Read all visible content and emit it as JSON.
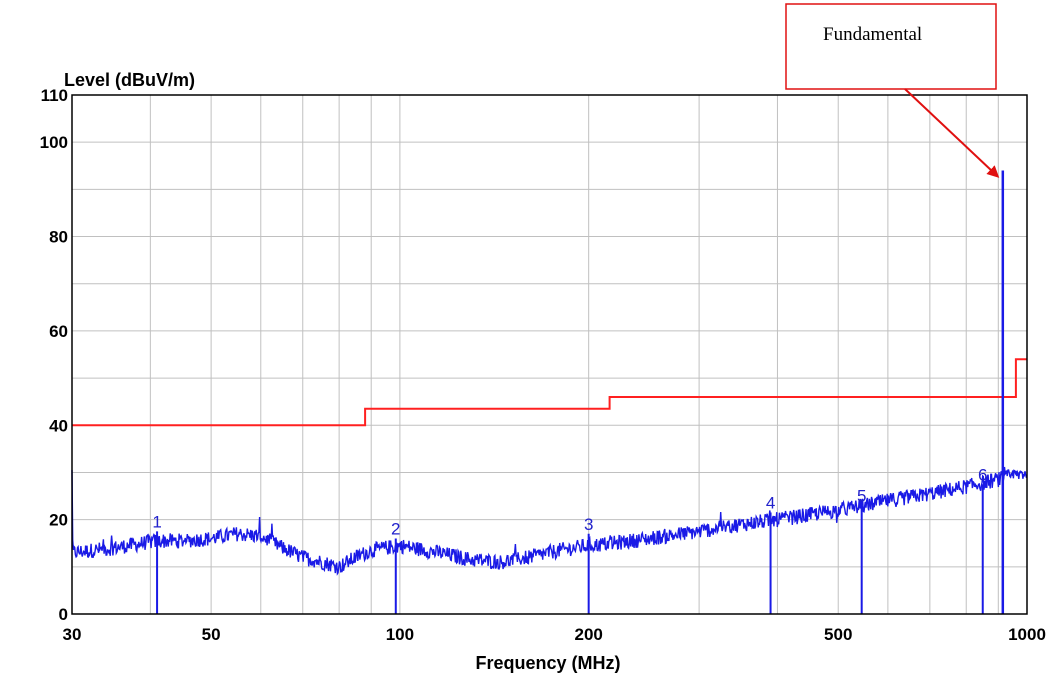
{
  "chart_data": {
    "type": "line",
    "title": "",
    "xlabel": "Frequency (MHz)",
    "ylabel": "Level (dBuV/m)",
    "x_scale": "log",
    "xlim": [
      30,
      1000
    ],
    "ylim": [
      0,
      110
    ],
    "x_ticks": [
      30,
      50,
      100,
      200,
      500,
      1000
    ],
    "y_ticks": [
      0,
      20,
      40,
      60,
      80,
      100,
      110
    ],
    "grid": true,
    "colors": {
      "limit": "#ff2020",
      "emission": "#1a1ae6",
      "grid": "#c0c0c0",
      "annotation": "#e01010"
    },
    "series": [
      {
        "name": "",
        "style": "step",
        "color": "#ff2020",
        "x": [
          30,
          88,
          88,
          216,
          216,
          960,
          960,
          1000
        ],
        "y": [
          40,
          40,
          43.5,
          43.5,
          46,
          46,
          54,
          54
        ]
      },
      {
        "name": "",
        "style": "noisy",
        "color": "#1a1ae6",
        "x": [
          30,
          35,
          41,
          45,
          50,
          55,
          60,
          65,
          70,
          75,
          80,
          85,
          90,
          100,
          110,
          120,
          130,
          145,
          160,
          180,
          200,
          220,
          250,
          300,
          350,
          400,
          450,
          500,
          550,
          600,
          700,
          800,
          900,
          1000
        ],
        "y": [
          13,
          14,
          15.5,
          15.5,
          16,
          17,
          16.5,
          14,
          12,
          11,
          10,
          12,
          13.5,
          14.5,
          13.5,
          12.5,
          11.5,
          11,
          12,
          13.5,
          14.5,
          15,
          16,
          17.5,
          19,
          20,
          21,
          22,
          23,
          24,
          25.5,
          27,
          28.5,
          30
        ]
      }
    ],
    "markers": [
      {
        "label": "1",
        "x": 41,
        "y": 17.5
      },
      {
        "label": "2",
        "x": 98.5,
        "y": 16
      },
      {
        "label": "3",
        "x": 200,
        "y": 17
      },
      {
        "label": "4",
        "x": 390,
        "y": 21.5
      },
      {
        "label": "5",
        "x": 545,
        "y": 23
      },
      {
        "label": "6",
        "x": 850,
        "y": 27.5
      }
    ],
    "fundamental": {
      "x": 915,
      "y": 94
    },
    "annotation": {
      "text": "Fundamental",
      "points_to_x": 915,
      "points_to_y": 94
    }
  }
}
